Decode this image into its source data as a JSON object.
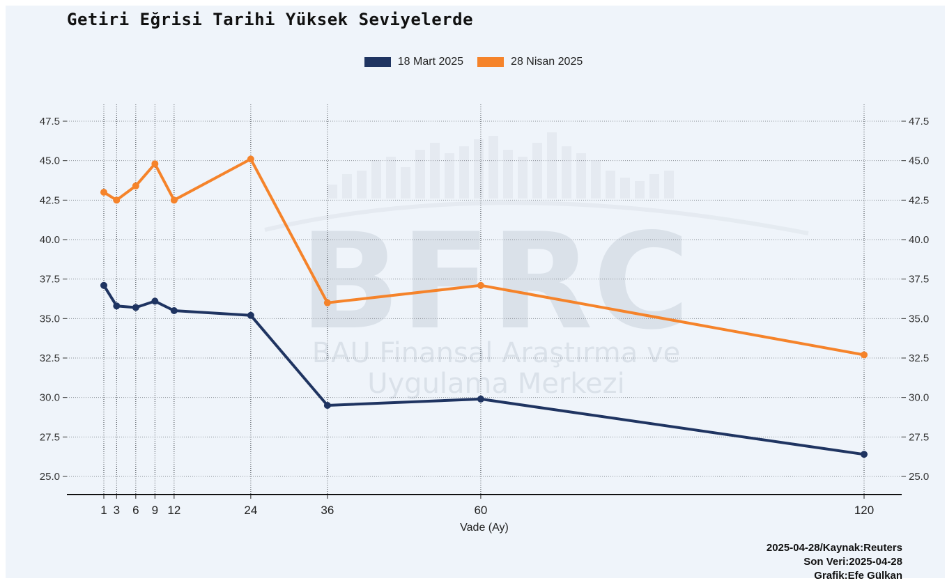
{
  "chart_data": {
    "type": "line",
    "title": "Getiri Eğrisi Tarihi Yüksek Seviyelerde",
    "xlabel": "Vade (Ay)",
    "ylabel": "",
    "x": [
      1,
      3,
      6,
      9,
      12,
      24,
      36,
      60,
      120
    ],
    "xticks": [
      "1",
      "3",
      "6",
      "9",
      "12",
      "24",
      "36",
      "60",
      "120"
    ],
    "ylim": [
      24.0,
      48.5
    ],
    "yticks": [
      "25.0",
      "27.5",
      "30.0",
      "32.5",
      "35.0",
      "37.5",
      "40.0",
      "42.5",
      "45.0",
      "47.5"
    ],
    "grid": true,
    "legend_position": "top-center",
    "series": [
      {
        "name": "18 Mart 2025",
        "color": "#1f3461",
        "values": [
          37.1,
          35.8,
          35.7,
          36.1,
          35.5,
          35.2,
          29.5,
          29.9,
          26.4
        ]
      },
      {
        "name": "28 Nisan 2025",
        "color": "#f5832a",
        "values": [
          43.0,
          42.5,
          43.4,
          44.8,
          42.5,
          45.1,
          36.0,
          37.1,
          32.7
        ]
      }
    ]
  },
  "watermark": {
    "big": "BFRC",
    "line1": "BAU Finansal Araştırma ve",
    "line2": "Uygulama Merkezi"
  },
  "footer": {
    "line1": "2025-04-28/Kaynak:Reuters",
    "line2": "Son Veri:2025-04-28",
    "line3": "Grafik:Efe Gülkan"
  }
}
